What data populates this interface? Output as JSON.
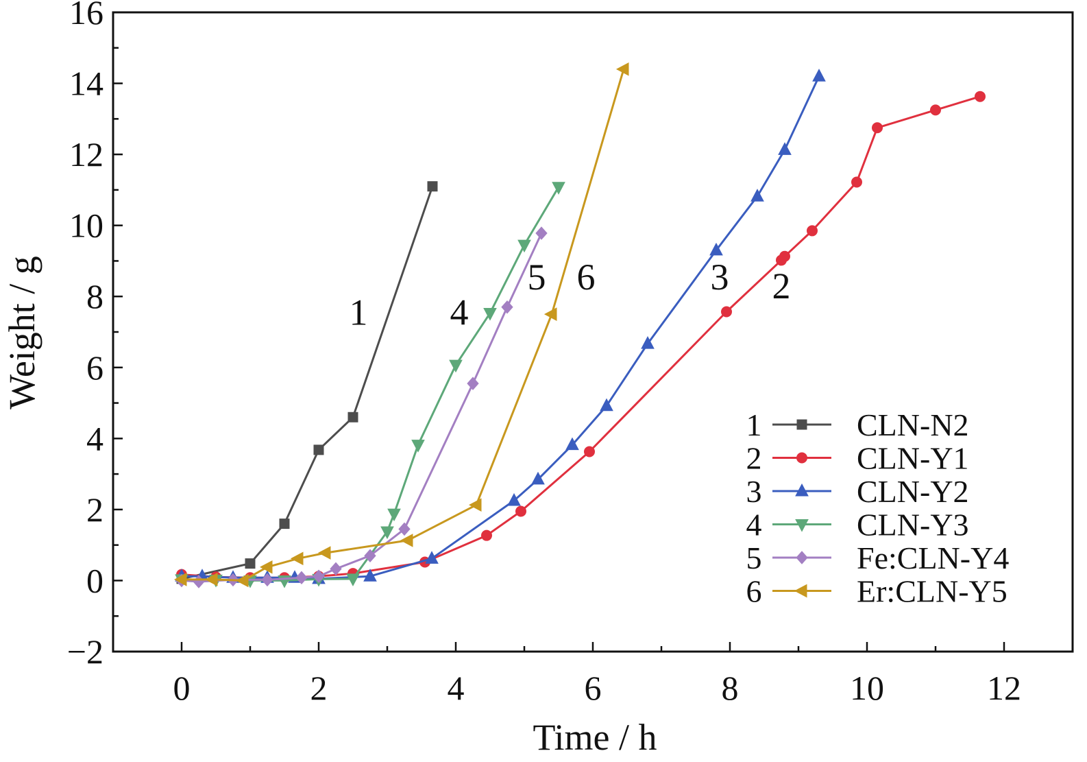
{
  "chart_data": {
    "type": "line",
    "xlabel": "Time / h",
    "ylabel": "Weight / g",
    "xlim": [
      -1,
      13
    ],
    "ylim": [
      -2,
      16
    ],
    "xticks": [
      0,
      2,
      4,
      6,
      8,
      10,
      12
    ],
    "xtick_labels": [
      "0",
      "2",
      "4",
      "6",
      "8",
      "10",
      "12"
    ],
    "yticks": [
      -2,
      0,
      2,
      4,
      6,
      8,
      10,
      12,
      14,
      16
    ],
    "ytick_labels": [
      "−2",
      "0",
      "2",
      "4",
      "6",
      "8",
      "10",
      "12",
      "14",
      "16"
    ],
    "grid": false,
    "legend_position": "bottom-right",
    "series": [
      {
        "id": "1",
        "name": "CLN-N2",
        "color": "#4d4d4d",
        "marker": "square",
        "points": [
          [
            0,
            0.05
          ],
          [
            1.0,
            0.48
          ],
          [
            1.5,
            1.6
          ],
          [
            2.0,
            3.68
          ],
          [
            2.5,
            4.6
          ],
          [
            3.66,
            11.1
          ]
        ]
      },
      {
        "id": "2",
        "name": "CLN-Y1",
        "color": "#e0303e",
        "marker": "circle",
        "points": [
          [
            0,
            0.17
          ],
          [
            0.5,
            0.1
          ],
          [
            1.0,
            0.08
          ],
          [
            1.5,
            0.08
          ],
          [
            2.0,
            0.12
          ],
          [
            2.5,
            0.2
          ],
          [
            3.55,
            0.52
          ],
          [
            4.45,
            1.27
          ],
          [
            4.95,
            1.95
          ],
          [
            5.95,
            3.63
          ],
          [
            7.95,
            7.57
          ],
          [
            8.75,
            9.02
          ],
          [
            8.8,
            9.13
          ],
          [
            9.2,
            9.85
          ],
          [
            9.85,
            11.22
          ],
          [
            10.15,
            12.75
          ],
          [
            11.0,
            13.25
          ],
          [
            11.65,
            13.63
          ]
        ]
      },
      {
        "id": "3",
        "name": "CLN-Y2",
        "color": "#3a5dbf",
        "marker": "triangle-up",
        "points": [
          [
            0,
            0.12
          ],
          [
            0.3,
            0.12
          ],
          [
            0.75,
            0.08
          ],
          [
            1.25,
            0.08
          ],
          [
            1.65,
            0.08
          ],
          [
            2.0,
            0.05
          ],
          [
            2.75,
            0.12
          ],
          [
            3.65,
            0.62
          ],
          [
            4.85,
            2.25
          ],
          [
            5.2,
            2.85
          ],
          [
            5.7,
            3.82
          ],
          [
            6.2,
            4.92
          ],
          [
            6.8,
            6.67
          ],
          [
            7.8,
            9.3
          ],
          [
            8.4,
            10.82
          ],
          [
            8.8,
            12.13
          ],
          [
            9.3,
            14.2
          ]
        ]
      },
      {
        "id": "4",
        "name": "CLN-Y3",
        "color": "#5da879",
        "marker": "triangle-down",
        "points": [
          [
            0,
            0.03
          ],
          [
            0.5,
            0.02
          ],
          [
            1.0,
            0.0
          ],
          [
            1.5,
            0.0
          ],
          [
            2.0,
            0.04
          ],
          [
            2.5,
            0.05
          ],
          [
            3.0,
            1.38
          ],
          [
            3.1,
            1.88
          ],
          [
            3.45,
            3.82
          ],
          [
            4.0,
            6.07
          ],
          [
            4.5,
            7.53
          ],
          [
            5.0,
            9.45
          ],
          [
            5.5,
            11.08
          ]
        ]
      },
      {
        "id": "5",
        "name": "Fe:CLN-Y4",
        "color": "#a37fc2",
        "marker": "diamond",
        "points": [
          [
            0,
            0.0
          ],
          [
            0.25,
            -0.03
          ],
          [
            0.75,
            0.02
          ],
          [
            1.25,
            0.02
          ],
          [
            1.75,
            0.08
          ],
          [
            2.0,
            0.12
          ],
          [
            2.25,
            0.33
          ],
          [
            2.75,
            0.7
          ],
          [
            3.25,
            1.45
          ],
          [
            4.25,
            5.55
          ],
          [
            4.75,
            7.7
          ],
          [
            5.25,
            9.78
          ]
        ]
      },
      {
        "id": "6",
        "name": "Er:CLN-Y5",
        "color": "#c8981e",
        "marker": "triangle-left",
        "points": [
          [
            0,
            0.03
          ],
          [
            0.45,
            0.03
          ],
          [
            0.9,
            0.0
          ],
          [
            1.25,
            0.38
          ],
          [
            1.7,
            0.62
          ],
          [
            2.1,
            0.78
          ],
          [
            3.3,
            1.13
          ],
          [
            4.3,
            2.13
          ],
          [
            5.4,
            7.5
          ],
          [
            6.45,
            14.4
          ]
        ]
      }
    ],
    "annotations": [
      {
        "text": "1",
        "x": 2.58,
        "y": 7.2
      },
      {
        "text": "4",
        "x": 4.05,
        "y": 7.2
      },
      {
        "text": "5",
        "x": 5.18,
        "y": 8.2
      },
      {
        "text": "6",
        "x": 5.9,
        "y": 8.2
      },
      {
        "text": "3",
        "x": 7.85,
        "y": 8.2
      },
      {
        "text": "2",
        "x": 8.75,
        "y": 7.95
      }
    ]
  }
}
